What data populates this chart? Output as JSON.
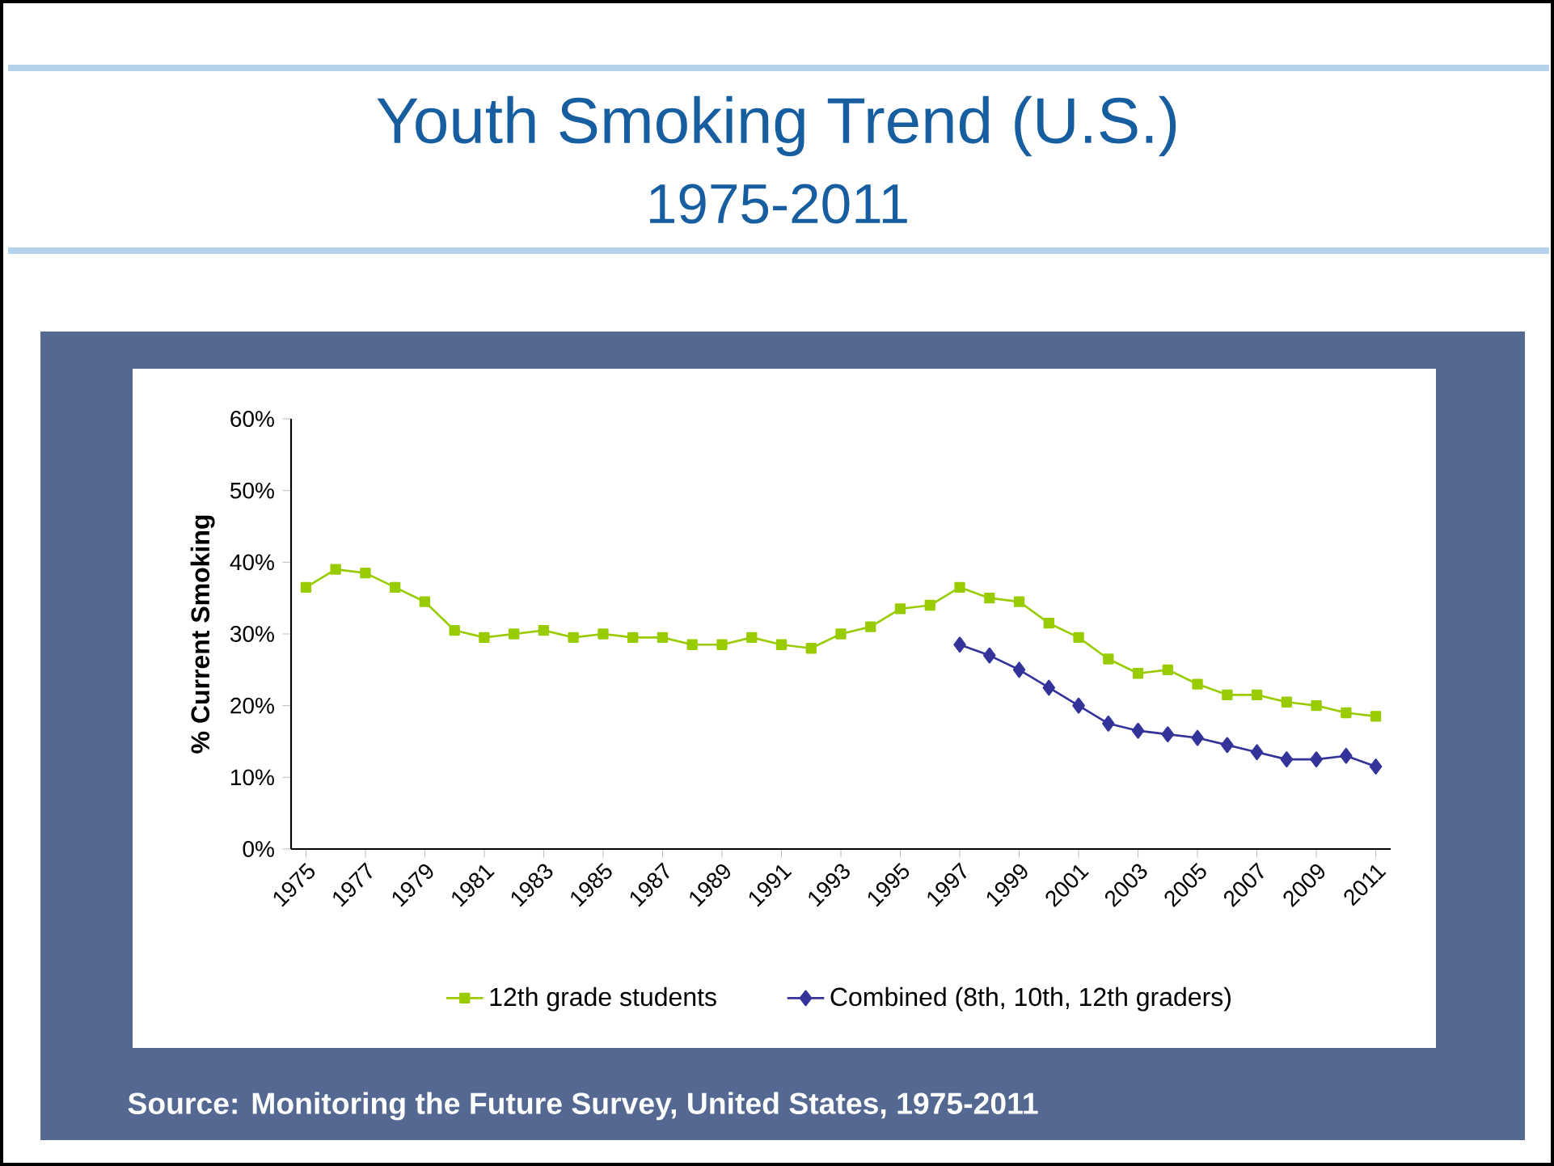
{
  "chart_data": {
    "type": "line",
    "title": "Youth Smoking Trend (U.S.)",
    "subtitle": "1975-2011",
    "ylabel": "% Current Smoking",
    "annotations": [
      "Source: Monitoring the Future Survey, United States, 1975-2011"
    ],
    "xlim": [
      1974.5,
      2011.5
    ],
    "xticks": [
      1975,
      1977,
      1979,
      1981,
      1983,
      1985,
      1987,
      1989,
      1991,
      1993,
      1995,
      1997,
      1999,
      2001,
      2003,
      2005,
      2007,
      2009,
      2011
    ],
    "ylim": [
      0,
      60
    ],
    "yticks": [
      {
        "value": 0,
        "label": "0%"
      },
      {
        "value": 10,
        "label": "10%"
      },
      {
        "value": 20,
        "label": "20%"
      },
      {
        "value": 30,
        "label": "30%"
      },
      {
        "value": 40,
        "label": "40%"
      },
      {
        "value": 50,
        "label": "50%"
      },
      {
        "value": 60,
        "label": "60%"
      }
    ],
    "legend": "bottom",
    "grid": false,
    "line_style": "solid",
    "series": [
      {
        "name": "12th grade students",
        "color": "#99cc00",
        "marker": "square",
        "x": [
          1975,
          1976,
          1977,
          1978,
          1979,
          1980,
          1981,
          1982,
          1983,
          1984,
          1985,
          1986,
          1987,
          1988,
          1989,
          1990,
          1991,
          1992,
          1993,
          1994,
          1995,
          1996,
          1997,
          1998,
          1999,
          2000,
          2001,
          2002,
          2003,
          2004,
          2005,
          2006,
          2007,
          2008,
          2009,
          2010,
          2011
        ],
        "values": [
          36.5,
          39,
          38.5,
          36.5,
          34.5,
          30.5,
          29.5,
          30,
          30.5,
          29.5,
          30,
          29.5,
          29.5,
          28.5,
          28.5,
          29.5,
          28.5,
          28,
          30,
          31,
          33.5,
          34,
          36.5,
          35,
          34.5,
          31.5,
          29.5,
          26.5,
          24.5,
          25,
          23,
          21.5,
          21.5,
          20.5,
          20,
          19,
          18.5
        ]
      },
      {
        "name": "Combined (8th, 10th, 12th graders)",
        "color": "#333399",
        "marker": "diamond",
        "x": [
          1997,
          1998,
          1999,
          2000,
          2001,
          2002,
          2003,
          2004,
          2005,
          2006,
          2007,
          2008,
          2009,
          2010,
          2011
        ],
        "values": [
          28.5,
          27,
          25,
          22.5,
          20,
          17.5,
          16.5,
          16,
          15.5,
          14.5,
          13.5,
          12.5,
          12.5,
          13,
          11.5
        ]
      }
    ]
  }
}
